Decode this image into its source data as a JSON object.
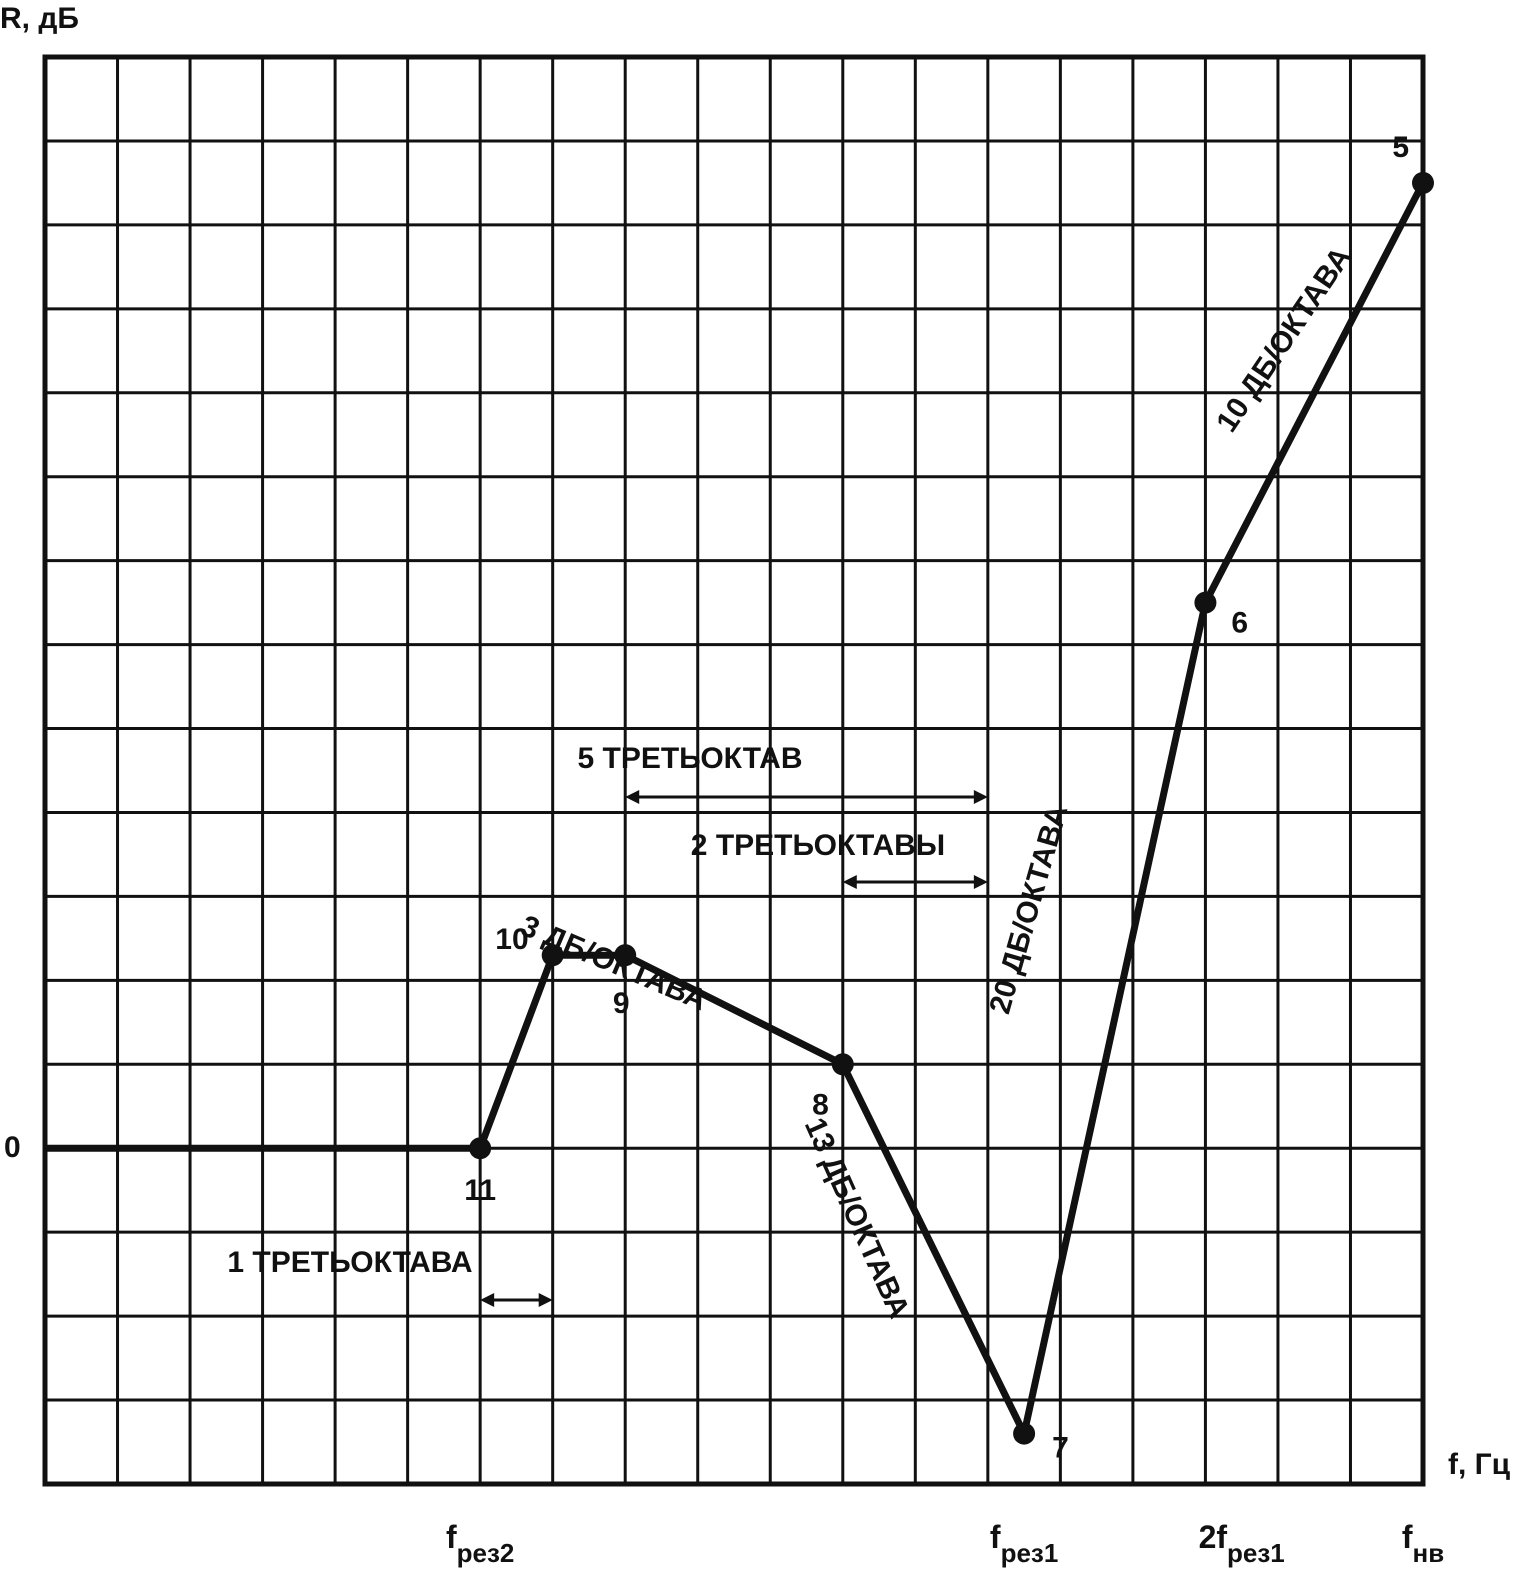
{
  "chart_data": {
    "type": "line",
    "ylabel": "R, дБ",
    "xlabel": "f, Гц",
    "y_zero_label": "0",
    "x_tick_labels": [
      {
        "x": 3,
        "main": "f",
        "sub": "рез2"
      },
      {
        "x": 10.5,
        "main": "f",
        "sub": "рез1"
      },
      {
        "x": 13.5,
        "main": "2f",
        "sub": "рез1"
      },
      {
        "x": 16,
        "main": "f",
        "sub": "нв"
      }
    ],
    "xlim": [
      -3,
      16
    ],
    "ylim": [
      -4,
      13
    ],
    "grid": true,
    "series": [
      {
        "values": [
          [
            -3,
            0
          ],
          [
            3,
            0
          ],
          [
            4,
            2.3
          ],
          [
            5,
            2.3
          ],
          [
            8,
            1
          ],
          [
            10.5,
            -3.4
          ],
          [
            13,
            6.5
          ],
          [
            16,
            11.5
          ]
        ]
      }
    ],
    "points": [
      {
        "label": "11",
        "x": 3,
        "y": 0
      },
      {
        "label": "10",
        "x": 4,
        "y": 2.3
      },
      {
        "label": "9",
        "x": 5,
        "y": 2.3
      },
      {
        "label": "8",
        "x": 8,
        "y": 1
      },
      {
        "label": "7",
        "x": 10.5,
        "y": -3.4
      },
      {
        "label": "6",
        "x": 13,
        "y": 6.5
      },
      {
        "label": "5",
        "x": 16,
        "y": 11.5
      }
    ],
    "annotations": {
      "five_third_octaves": "5 ТРЕТЬОКТАВ",
      "two_third_octaves": "2 ТРЕТЬОКТАВЫ",
      "one_third_octave": "1 ТРЕТЬОКТАВА",
      "slope_3": "3 ДБ/ОКТАВА",
      "slope_13": "13 ДБ/ОКТАВА",
      "slope_20": "20 ДБ/ОКТАВА",
      "slope_10": "10 ДБ/ОКТАВА"
    }
  }
}
